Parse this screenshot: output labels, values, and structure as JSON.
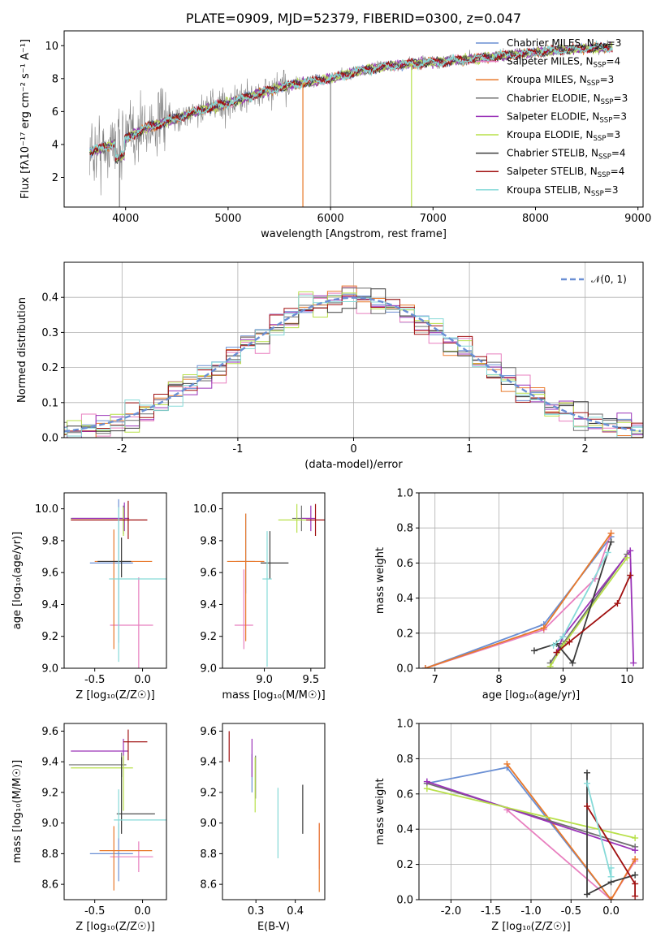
{
  "colors": {
    "chabrier_miles": "#6a8fd4",
    "salpeter_miles": "#e87fbf",
    "kroupa_miles": "#e8792b",
    "chabrier_elodie": "#6f6f6f",
    "salpeter_elodie": "#9a33b8",
    "kroupa_elodie": "#b8e04a",
    "chabrier_stelib": "#3c3c3c",
    "salpeter_stelib": "#a01010",
    "kroupa_stelib": "#86dad8",
    "data": "#808080",
    "normal": "#6a8fd4",
    "grid": "#b0b0b0"
  },
  "chart_data": [
    {
      "id": "spectrum",
      "type": "line",
      "title": "PLATE=0909, MJD=52379, FIBERID=0300, z=0.047",
      "xlabel": "wavelength [Angstrom, rest frame]",
      "ylabel": "Flux [fλ10⁻¹⁷ erg cm⁻² s⁻¹ A⁻¹]",
      "xlim": [
        3400,
        9050
      ],
      "ylim": [
        0.2,
        10.9
      ],
      "xticks": [
        4000,
        5000,
        6000,
        7000,
        8000,
        9000
      ],
      "yticks": [
        2,
        4,
        6,
        8,
        10
      ],
      "grid": false,
      "legend": "top-right",
      "legend_entries": [
        {
          "label": "Chabrier MILES, N",
          "sub": "SSP",
          "tail": "=3",
          "color": "chabrier_miles"
        },
        {
          "label": "Salpeter MILES, N",
          "sub": "SSP",
          "tail": "=4",
          "color": "salpeter_miles"
        },
        {
          "label": "Kroupa MILES, N",
          "sub": "SSP",
          "tail": "=3",
          "color": "kroupa_miles"
        },
        {
          "label": "Chabrier ELODIE, N",
          "sub": "SSP",
          "tail": "=3",
          "color": "chabrier_elodie"
        },
        {
          "label": "Salpeter ELODIE, N",
          "sub": "SSP",
          "tail": "=3",
          "color": "salpeter_elodie"
        },
        {
          "label": "Kroupa ELODIE, N",
          "sub": "SSP",
          "tail": "=3",
          "color": "kroupa_elodie"
        },
        {
          "label": "Chabrier STELIB, N",
          "sub": "SSP",
          "tail": "=4",
          "color": "chabrier_stelib"
        },
        {
          "label": "Salpeter STELIB, N",
          "sub": "SSP",
          "tail": "=4",
          "color": "salpeter_stelib"
        },
        {
          "label": "Kroupa STELIB, N",
          "sub": "SSP",
          "tail": "=3",
          "color": "kroupa_stelib"
        }
      ],
      "continuum": [
        [
          3650,
          3.6
        ],
        [
          3800,
          3.8
        ],
        [
          4000,
          4.4
        ],
        [
          4200,
          5.0
        ],
        [
          4500,
          5.6
        ],
        [
          4800,
          6.2
        ],
        [
          5000,
          6.5
        ],
        [
          5300,
          7.1
        ],
        [
          5600,
          7.6
        ],
        [
          6000,
          8.0
        ],
        [
          6300,
          8.5
        ],
        [
          6600,
          8.8
        ],
        [
          7000,
          9.0
        ],
        [
          7400,
          9.2
        ],
        [
          7700,
          9.4
        ],
        [
          8000,
          9.6
        ],
        [
          8400,
          9.8
        ],
        [
          8750,
          9.9
        ]
      ],
      "spikes": [
        [
          5730,
          0.2
        ],
        [
          6790,
          0.2
        ],
        [
          3940,
          0.2
        ],
        [
          6000,
          0.2
        ]
      ]
    },
    {
      "id": "residuals",
      "type": "histogram",
      "xlabel": "(data-model)/error",
      "ylabel": "Normed distribution",
      "xlim": [
        -2.5,
        2.5
      ],
      "ylim": [
        0,
        0.5
      ],
      "xticks": [
        -2,
        -1,
        0,
        1,
        2
      ],
      "yticks": [
        0.0,
        0.1,
        0.2,
        0.3,
        0.4
      ],
      "grid": true,
      "legend": "top-right",
      "legend_label": "𝒩(0, 1)"
    },
    {
      "id": "age_vs_Z",
      "type": "errorbar",
      "xlabel": "Z [log₁₀(Z/Z☉)]",
      "ylabel": "age  [log₁₀(age/yr)]",
      "xlim": [
        -0.82,
        0.25
      ],
      "ylim": [
        9.0,
        10.1
      ],
      "xticks": [
        -0.5,
        0.0
      ],
      "yticks": [
        9.0,
        9.2,
        9.4,
        9.6,
        9.8,
        10.0
      ],
      "points": [
        {
          "x": -0.25,
          "y": 9.66,
          "xerr": [
            0.3,
            0.15
          ],
          "yerr": [
            0.5,
            0.4
          ],
          "color": "chabrier_miles"
        },
        {
          "x": -0.04,
          "y": 9.27,
          "xerr": [
            0.3,
            0.15
          ],
          "yerr": [
            0.3,
            0.3
          ],
          "color": "salpeter_miles"
        },
        {
          "x": -0.3,
          "y": 9.67,
          "xerr": [
            0.2,
            0.4
          ],
          "yerr": [
            0.55,
            0.2
          ],
          "color": "kroupa_miles"
        },
        {
          "x": -0.2,
          "y": 9.94,
          "xerr": [
            0.55,
            0.05
          ],
          "yerr": [
            0.1,
            0.08
          ],
          "color": "chabrier_elodie"
        },
        {
          "x": -0.19,
          "y": 9.94,
          "xerr": [
            0.55,
            0.05
          ],
          "yerr": [
            0.08,
            0.1
          ],
          "color": "salpeter_elodie"
        },
        {
          "x": -0.2,
          "y": 9.93,
          "xerr": [
            0.55,
            0.05
          ],
          "yerr": [
            0.1,
            0.08
          ],
          "color": "kroupa_elodie"
        },
        {
          "x": -0.22,
          "y": 9.67,
          "xerr": [
            0.25,
            0.1
          ],
          "yerr": [
            0.1,
            0.15
          ],
          "color": "chabrier_stelib"
        },
        {
          "x": -0.15,
          "y": 9.93,
          "xerr": [
            0.6,
            0.2
          ],
          "yerr": [
            0.12,
            0.12
          ],
          "color": "salpeter_stelib"
        },
        {
          "x": -0.25,
          "y": 9.56,
          "xerr": [
            0.1,
            0.5
          ],
          "yerr": [
            0.52,
            0.45
          ],
          "color": "kroupa_stelib"
        }
      ]
    },
    {
      "id": "age_vs_mass",
      "type": "errorbar",
      "xlabel": "mass [log₁₀(M/M☉)]",
      "ylabel": "",
      "xlim": [
        8.55,
        9.65
      ],
      "ylim": [
        9.0,
        10.1
      ],
      "xticks": [
        9.0,
        9.5
      ],
      "yticks": [
        9.0,
        9.2,
        9.4,
        9.6,
        9.8,
        10.0
      ],
      "points": [
        {
          "x": 8.8,
          "y": 9.67,
          "xerr": [
            0.1,
            0.1
          ],
          "yerr": [
            0.2,
            0.3
          ],
          "color": "chabrier_miles"
        },
        {
          "x": 8.78,
          "y": 9.27,
          "xerr": [
            0.1,
            0.1
          ],
          "yerr": [
            0.15,
            0.35
          ],
          "color": "salpeter_miles"
        },
        {
          "x": 8.8,
          "y": 9.67,
          "xerr": [
            0.2,
            0.2
          ],
          "yerr": [
            0.5,
            0.3
          ],
          "color": "kroupa_miles"
        },
        {
          "x": 9.4,
          "y": 9.94,
          "xerr": [
            0.1,
            0.1
          ],
          "yerr": [
            0.08,
            0.08
          ],
          "color": "chabrier_elodie"
        },
        {
          "x": 9.5,
          "y": 9.94,
          "xerr": [
            0.1,
            0.05
          ],
          "yerr": [
            0.08,
            0.08
          ],
          "color": "salpeter_elodie"
        },
        {
          "x": 9.35,
          "y": 9.93,
          "xerr": [
            0.2,
            0.1
          ],
          "yerr": [
            0.08,
            0.1
          ],
          "color": "kroupa_elodie"
        },
        {
          "x": 9.06,
          "y": 9.66,
          "xerr": [
            0.1,
            0.2
          ],
          "yerr": [
            0.1,
            0.2
          ],
          "color": "chabrier_stelib"
        },
        {
          "x": 9.55,
          "y": 9.93,
          "xerr": [
            0.1,
            0.1
          ],
          "yerr": [
            0.1,
            0.1
          ],
          "color": "salpeter_stelib"
        },
        {
          "x": 9.03,
          "y": 9.56,
          "xerr": [
            0.05,
            0.05
          ],
          "yerr": [
            0.55,
            0.3
          ],
          "color": "kroupa_stelib"
        }
      ]
    },
    {
      "id": "weight_vs_age",
      "type": "line",
      "xlabel": "age  [log₁₀(age/yr)]",
      "ylabel": "mass weight",
      "xlim": [
        6.75,
        10.25
      ],
      "ylim": [
        0,
        1.0
      ],
      "xticks": [
        7,
        8,
        9,
        10
      ],
      "yticks": [
        0.0,
        0.2,
        0.4,
        0.6,
        0.8,
        1.0
      ],
      "grid": true,
      "series": [
        {
          "color": "chabrier_miles",
          "x": [
            6.85,
            8.7,
            9.75
          ],
          "y": [
            0.0,
            0.25,
            0.75
          ]
        },
        {
          "color": "salpeter_miles",
          "x": [
            6.85,
            8.7,
            9.5,
            9.75
          ],
          "y": [
            0.0,
            0.22,
            0.51,
            0.77
          ]
        },
        {
          "color": "kroupa_miles",
          "x": [
            6.85,
            8.7,
            9.75
          ],
          "y": [
            0.0,
            0.23,
            0.77
          ]
        },
        {
          "color": "chabrier_elodie",
          "x": [
            8.8,
            9.0,
            10.0
          ],
          "y": [
            0.03,
            0.14,
            0.65
          ]
        },
        {
          "color": "salpeter_elodie",
          "x": [
            8.9,
            9.0,
            10.05,
            10.1
          ],
          "y": [
            0.09,
            0.18,
            0.67,
            0.03
          ]
        },
        {
          "color": "kroupa_elodie",
          "x": [
            8.8,
            9.0,
            10.0
          ],
          "y": [
            0.01,
            0.13,
            0.63
          ]
        },
        {
          "color": "chabrier_stelib",
          "x": [
            8.55,
            8.9,
            9.15,
            9.75
          ],
          "y": [
            0.1,
            0.14,
            0.03,
            0.72
          ]
        },
        {
          "color": "salpeter_stelib",
          "x": [
            8.9,
            9.1,
            9.85,
            10.05
          ],
          "y": [
            0.09,
            0.15,
            0.37,
            0.53
          ]
        },
        {
          "color": "kroupa_stelib",
          "x": [
            8.85,
            9.0,
            9.7
          ],
          "y": [
            0.13,
            0.18,
            0.66
          ]
        }
      ]
    },
    {
      "id": "mass_vs_Z",
      "type": "errorbar",
      "xlabel": "Z [log₁₀(Z/Z☉)]",
      "ylabel": "mass [log₁₀(M/M☉)]",
      "xlim": [
        -0.82,
        0.25
      ],
      "ylim": [
        8.5,
        9.65
      ],
      "xticks": [
        -0.5,
        0.0
      ],
      "yticks": [
        8.6,
        8.8,
        9.0,
        9.2,
        9.4,
        9.6
      ],
      "points": [
        {
          "x": -0.25,
          "y": 8.8,
          "xerr": [
            0.3,
            0.15
          ],
          "yerr": [
            0.18,
            0.2
          ],
          "color": "chabrier_miles"
        },
        {
          "x": -0.04,
          "y": 8.78,
          "xerr": [
            0.3,
            0.15
          ],
          "yerr": [
            0.1,
            0.1
          ],
          "color": "salpeter_miles"
        },
        {
          "x": -0.3,
          "y": 8.82,
          "xerr": [
            0.15,
            0.4
          ],
          "yerr": [
            0.26,
            0.16
          ],
          "color": "kroupa_miles"
        },
        {
          "x": -0.22,
          "y": 9.38,
          "xerr": [
            0.55,
            0.05
          ],
          "yerr": [
            0.08,
            0.08
          ],
          "color": "chabrier_elodie"
        },
        {
          "x": -0.2,
          "y": 9.47,
          "xerr": [
            0.55,
            0.05
          ],
          "yerr": [
            0.1,
            0.08
          ],
          "color": "salpeter_elodie"
        },
        {
          "x": -0.2,
          "y": 9.36,
          "xerr": [
            0.55,
            0.1
          ],
          "yerr": [
            0.28,
            0.08
          ],
          "color": "kroupa_elodie"
        },
        {
          "x": -0.22,
          "y": 9.06,
          "xerr": [
            0.05,
            0.35
          ],
          "yerr": [
            0.13,
            0.37
          ],
          "color": "chabrier_stelib"
        },
        {
          "x": -0.15,
          "y": 9.53,
          "xerr": [
            0.05,
            0.2
          ],
          "yerr": [
            0.12,
            0.08
          ],
          "color": "salpeter_stelib"
        },
        {
          "x": -0.25,
          "y": 9.02,
          "xerr": [
            0.05,
            0.5
          ],
          "yerr": [
            0.12,
            0.2
          ],
          "color": "kroupa_stelib"
        }
      ]
    },
    {
      "id": "mass_vs_ebv",
      "type": "errorbar",
      "xlabel": "E(B-V)",
      "ylabel": "",
      "xlim": [
        0.215,
        0.475
      ],
      "ylim": [
        8.5,
        9.65
      ],
      "xticks": [
        0.3,
        0.4
      ],
      "yticks": [
        8.6,
        8.8,
        9.0,
        9.2,
        9.4,
        9.6
      ],
      "points": [
        {
          "x": 0.29,
          "y": 9.3,
          "xerr": [
            0,
            0
          ],
          "yerr": [
            0.1,
            0.15
          ],
          "color": "chabrier_miles"
        },
        {
          "x": 0.461,
          "y": 8.8,
          "xerr": [
            0,
            0
          ],
          "yerr": [
            0.1,
            0.2
          ],
          "color": "salpeter_miles"
        },
        {
          "x": 0.461,
          "y": 8.8,
          "xerr": [
            0,
            0
          ],
          "yerr": [
            0.25,
            0.2
          ],
          "color": "kroupa_miles"
        },
        {
          "x": 0.299,
          "y": 9.3,
          "xerr": [
            0,
            0
          ],
          "yerr": [
            0.14,
            0.14
          ],
          "color": "chabrier_elodie"
        },
        {
          "x": 0.29,
          "y": 9.45,
          "xerr": [
            0,
            0
          ],
          "yerr": [
            0.15,
            0.1
          ],
          "color": "salpeter_elodie"
        },
        {
          "x": 0.298,
          "y": 9.25,
          "xerr": [
            0,
            0
          ],
          "yerr": [
            0.18,
            0.18
          ],
          "color": "kroupa_elodie"
        },
        {
          "x": 0.419,
          "y": 9.1,
          "xerr": [
            0,
            0
          ],
          "yerr": [
            0.17,
            0.15
          ],
          "color": "chabrier_stelib"
        },
        {
          "x": 0.232,
          "y": 9.5,
          "xerr": [
            0,
            0
          ],
          "yerr": [
            0.1,
            0.1
          ],
          "color": "salpeter_stelib"
        },
        {
          "x": 0.356,
          "y": 9.0,
          "xerr": [
            0,
            0
          ],
          "yerr": [
            0.23,
            0.23
          ],
          "color": "kroupa_stelib"
        }
      ]
    },
    {
      "id": "weight_vs_Z",
      "type": "line",
      "xlabel": "Z [log₁₀(Z/Z☉)]",
      "ylabel": "mass weight",
      "xlim": [
        -2.4,
        0.4
      ],
      "ylim": [
        0,
        1.0
      ],
      "xticks": [
        -2.0,
        -1.5,
        -1.0,
        -0.5,
        0.0
      ],
      "yticks": [
        0.0,
        0.2,
        0.4,
        0.6,
        0.8,
        1.0
      ],
      "grid": true,
      "series": [
        {
          "color": "chabrier_miles",
          "x": [
            -2.3,
            -1.3,
            0.0
          ],
          "y": [
            0.66,
            0.75,
            0.0
          ]
        },
        {
          "color": "salpeter_miles",
          "x": [
            -1.3,
            0.0,
            0.3
          ],
          "y": [
            0.51,
            0.0,
            0.22
          ]
        },
        {
          "color": "kroupa_miles",
          "x": [
            -1.3,
            0.0,
            0.3
          ],
          "y": [
            0.77,
            0.0,
            0.23
          ]
        },
        {
          "color": "chabrier_elodie",
          "x": [
            -2.3,
            0.3
          ],
          "y": [
            0.66,
            0.3
          ]
        },
        {
          "color": "salpeter_elodie",
          "x": [
            -2.3,
            0.3
          ],
          "y": [
            0.67,
            0.28
          ]
        },
        {
          "color": "kroupa_elodie",
          "x": [
            -2.3,
            0.3
          ],
          "y": [
            0.63,
            0.35
          ]
        },
        {
          "color": "chabrier_stelib",
          "x": [
            -0.3,
            -0.3,
            0.0,
            0.3
          ],
          "y": [
            0.72,
            0.03,
            0.1,
            0.14
          ]
        },
        {
          "color": "salpeter_stelib",
          "x": [
            -0.3,
            0.3,
            0.3
          ],
          "y": [
            0.53,
            0.09,
            0.02
          ]
        },
        {
          "color": "kroupa_stelib",
          "x": [
            -0.3,
            0.0,
            0.0
          ],
          "y": [
            0.66,
            0.13,
            0.18
          ]
        }
      ]
    }
  ]
}
